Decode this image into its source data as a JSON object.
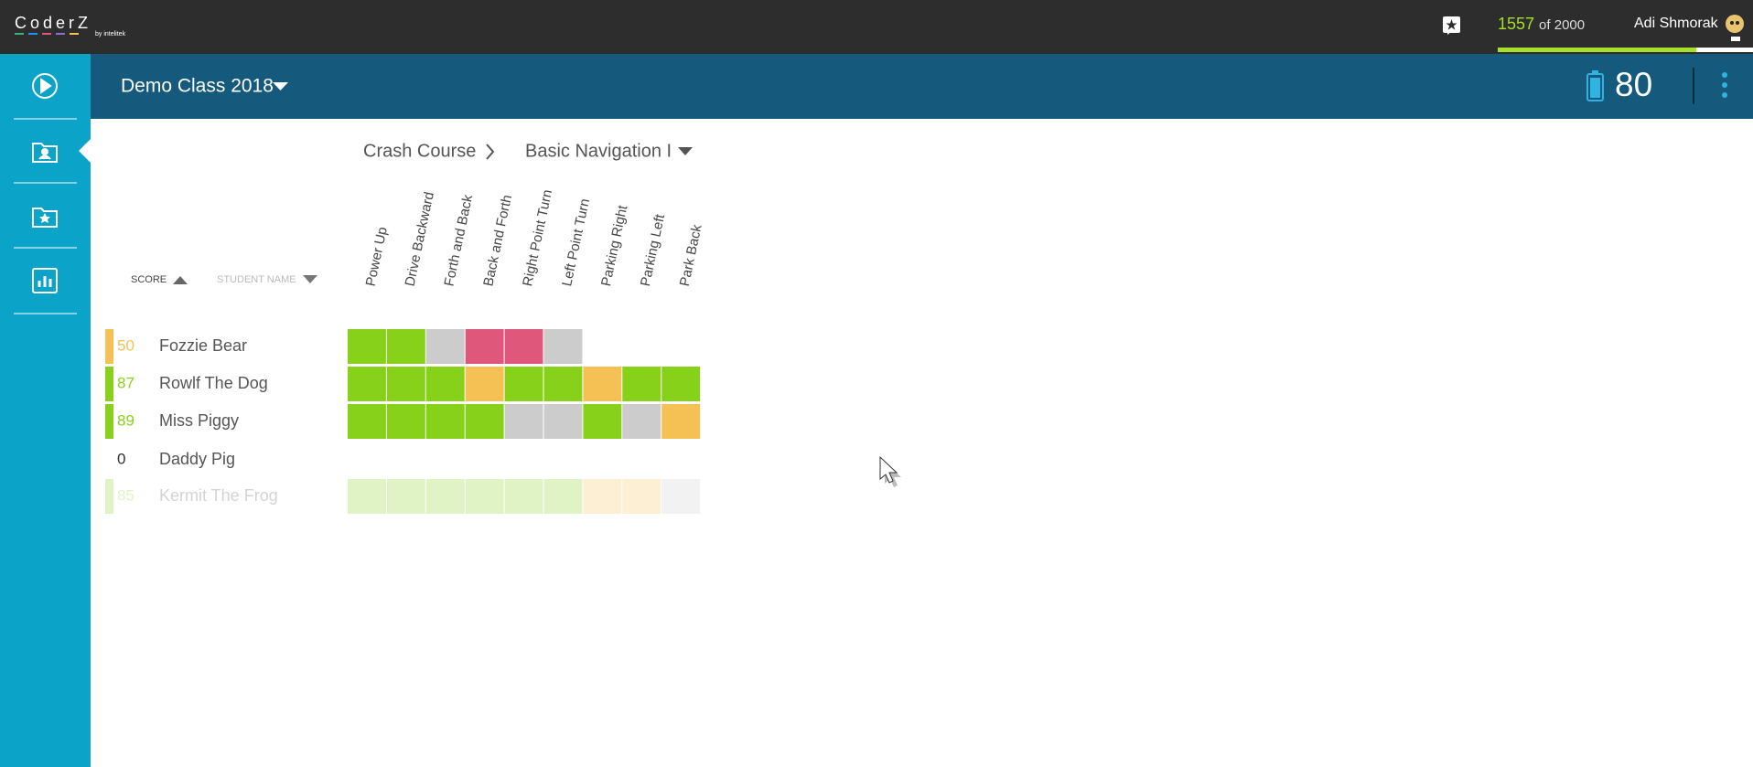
{
  "topbar": {
    "logo": "CoderZ",
    "logo_sub": "by intelitek",
    "points": {
      "value": 1557,
      "max": 2000,
      "of_label": "of 2000"
    },
    "user": "Adi Shmorak"
  },
  "header": {
    "class_name": "Demo Class 2018",
    "battery": "80"
  },
  "breadcrumb": {
    "course": "Crash Course",
    "chapter": "Basic Navigation I"
  },
  "sort": {
    "score": "SCORE",
    "name": "STUDENT NAME"
  },
  "missions": [
    "Power Up",
    "Drive Backward",
    "Forth and Back",
    "Back and Forth",
    "Right Point Turn",
    "Left Point Turn",
    "Parking Right",
    "Parking Left",
    "Park Back"
  ],
  "students": [
    {
      "score": 50,
      "name": "Fozzie Bear",
      "color": "#f5c155",
      "faded": false,
      "cells": [
        "#88d11a",
        "#88d11a",
        "#cccccc",
        "#e0577c",
        "#e0577c",
        "#cccccc"
      ]
    },
    {
      "score": 87,
      "name": "Rowlf The Dog",
      "color": "#88d11a",
      "faded": false,
      "cells": [
        "#88d11a",
        "#88d11a",
        "#88d11a",
        "#f5c155",
        "#88d11a",
        "#88d11a",
        "#f5c155",
        "#88d11a",
        "#88d11a"
      ]
    },
    {
      "score": 89,
      "name": "Miss Piggy",
      "color": "#88d11a",
      "faded": false,
      "cells": [
        "#88d11a",
        "#88d11a",
        "#88d11a",
        "#88d11a",
        "#cccccc",
        "#cccccc",
        "#88d11a",
        "#cccccc",
        "#f5c155"
      ]
    },
    {
      "score": 0,
      "name": "Daddy Pig",
      "color": null,
      "faded": false,
      "cells": []
    },
    {
      "score": 85,
      "name": "Kermit The Frog",
      "color": "#88d11a",
      "faded": true,
      "cells": [
        "#88d11a",
        "#88d11a",
        "#88d11a",
        "#88d11a",
        "#88d11a",
        "#88d11a",
        "#f5c155",
        "#f5c155",
        "#cccccc"
      ]
    }
  ]
}
